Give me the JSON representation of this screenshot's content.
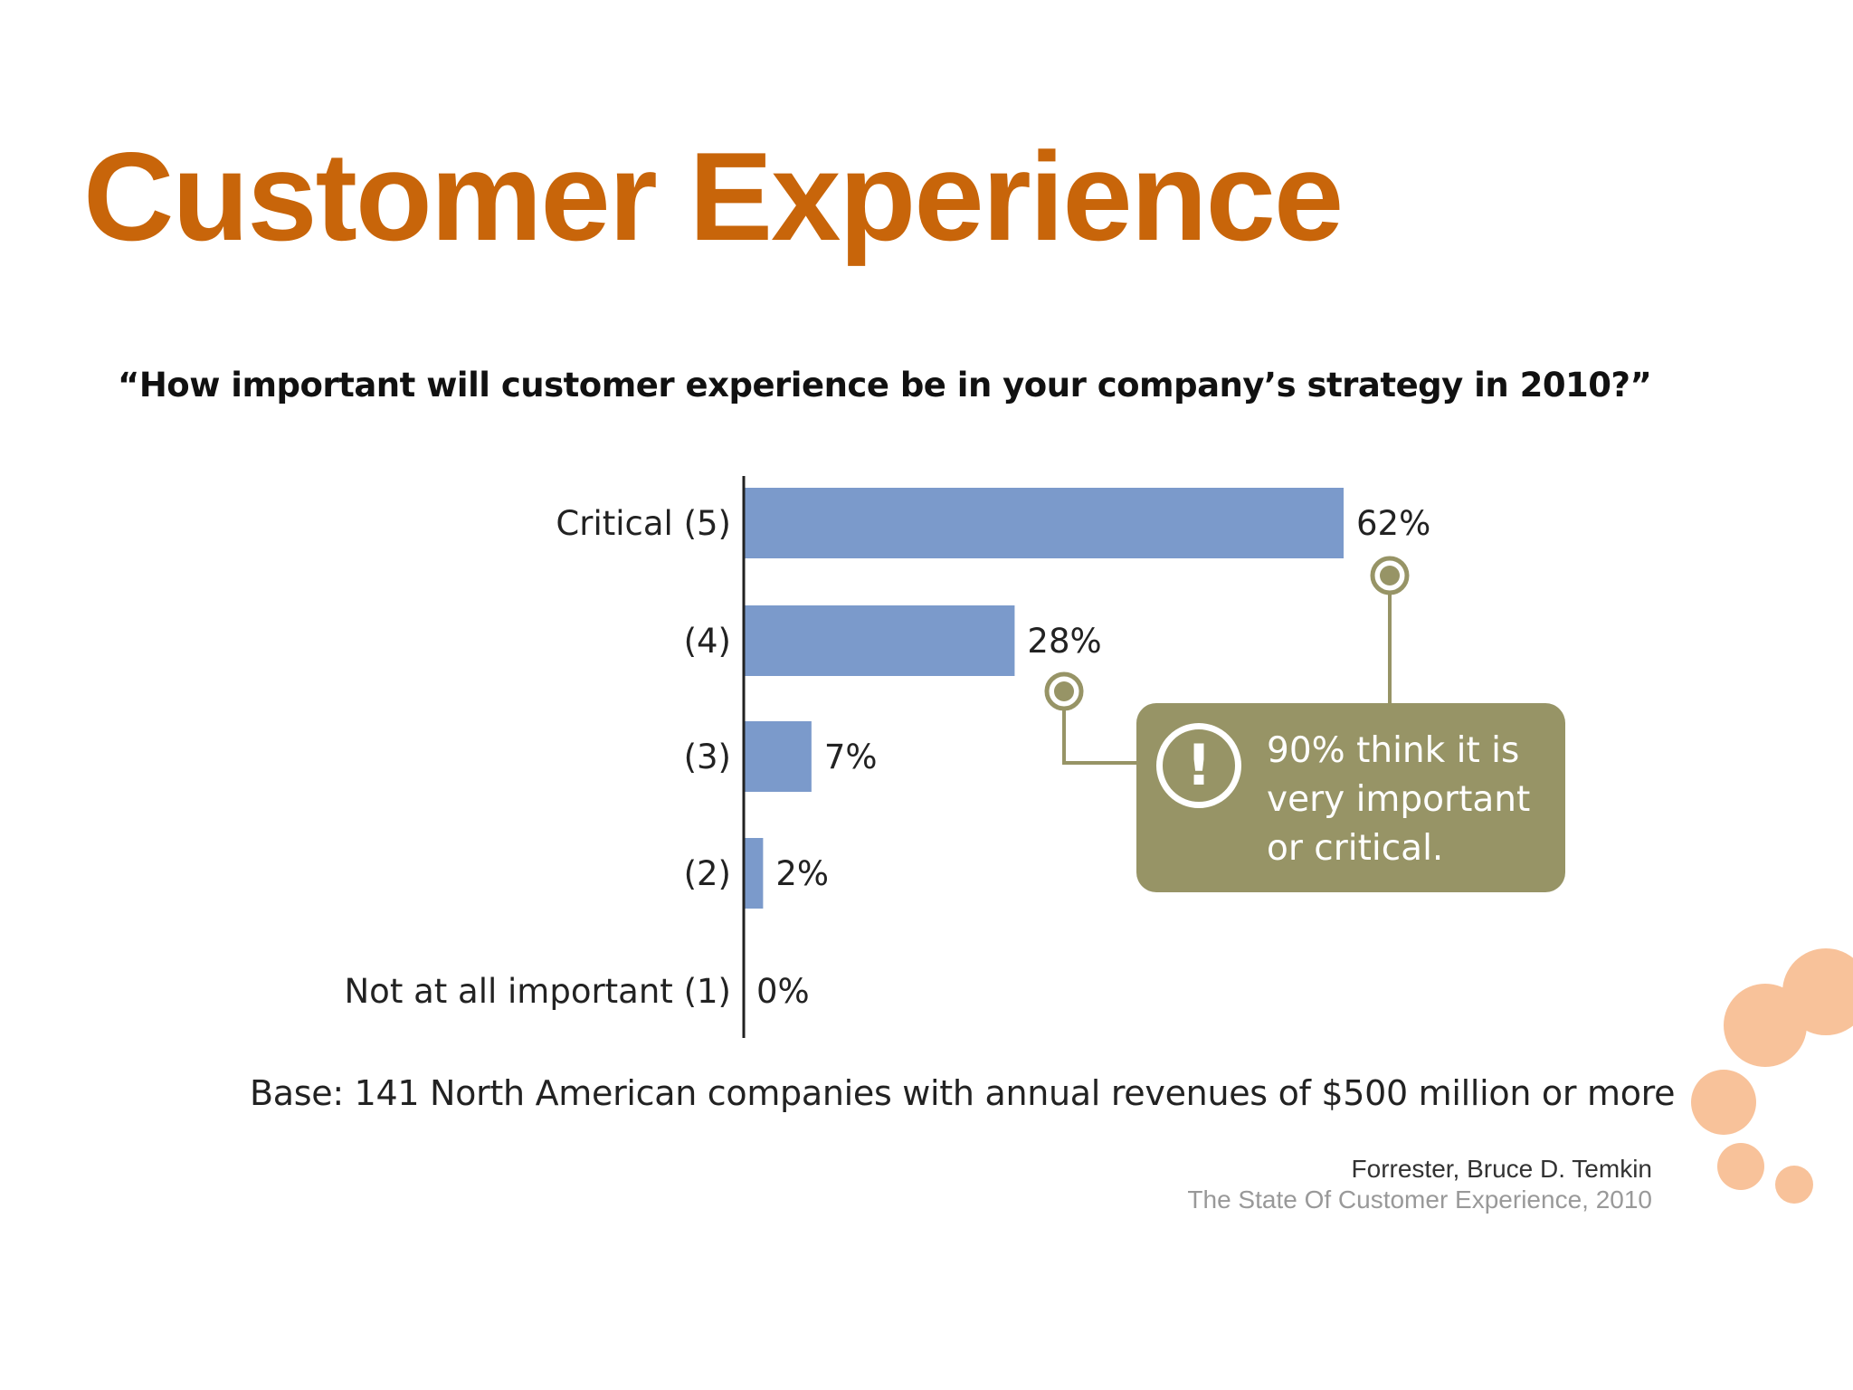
{
  "slide": {
    "title": "Customer Experience",
    "title_color": "#C8650A",
    "question": "“How important will customer experience be in your company’s strategy in 2010?”",
    "base_note": "Base: 141 North American companies with annual revenues of $500 million or more",
    "source_author": "Forrester, Bruce D. Temkin",
    "source_report": "The State Of Customer Experience, 2010"
  },
  "callout": {
    "icon": "exclamation-icon",
    "text": "90% think it is very important or critical.",
    "color": "#979466"
  },
  "chart_data": {
    "type": "bar",
    "orientation": "horizontal",
    "categories": [
      "Critical (5)",
      "(4)",
      "(3)",
      "(2)",
      "Not at all important (1)"
    ],
    "values": [
      62,
      28,
      7,
      2,
      0
    ],
    "value_labels": [
      "62%",
      "28%",
      "7%",
      "2%",
      "0%"
    ],
    "unit": "%",
    "xlim": [
      0,
      62
    ],
    "bar_color": "#7B9ACB",
    "axis_color": "#222222",
    "grid": false
  },
  "decor": {
    "dot_color": "#F8C29A"
  }
}
